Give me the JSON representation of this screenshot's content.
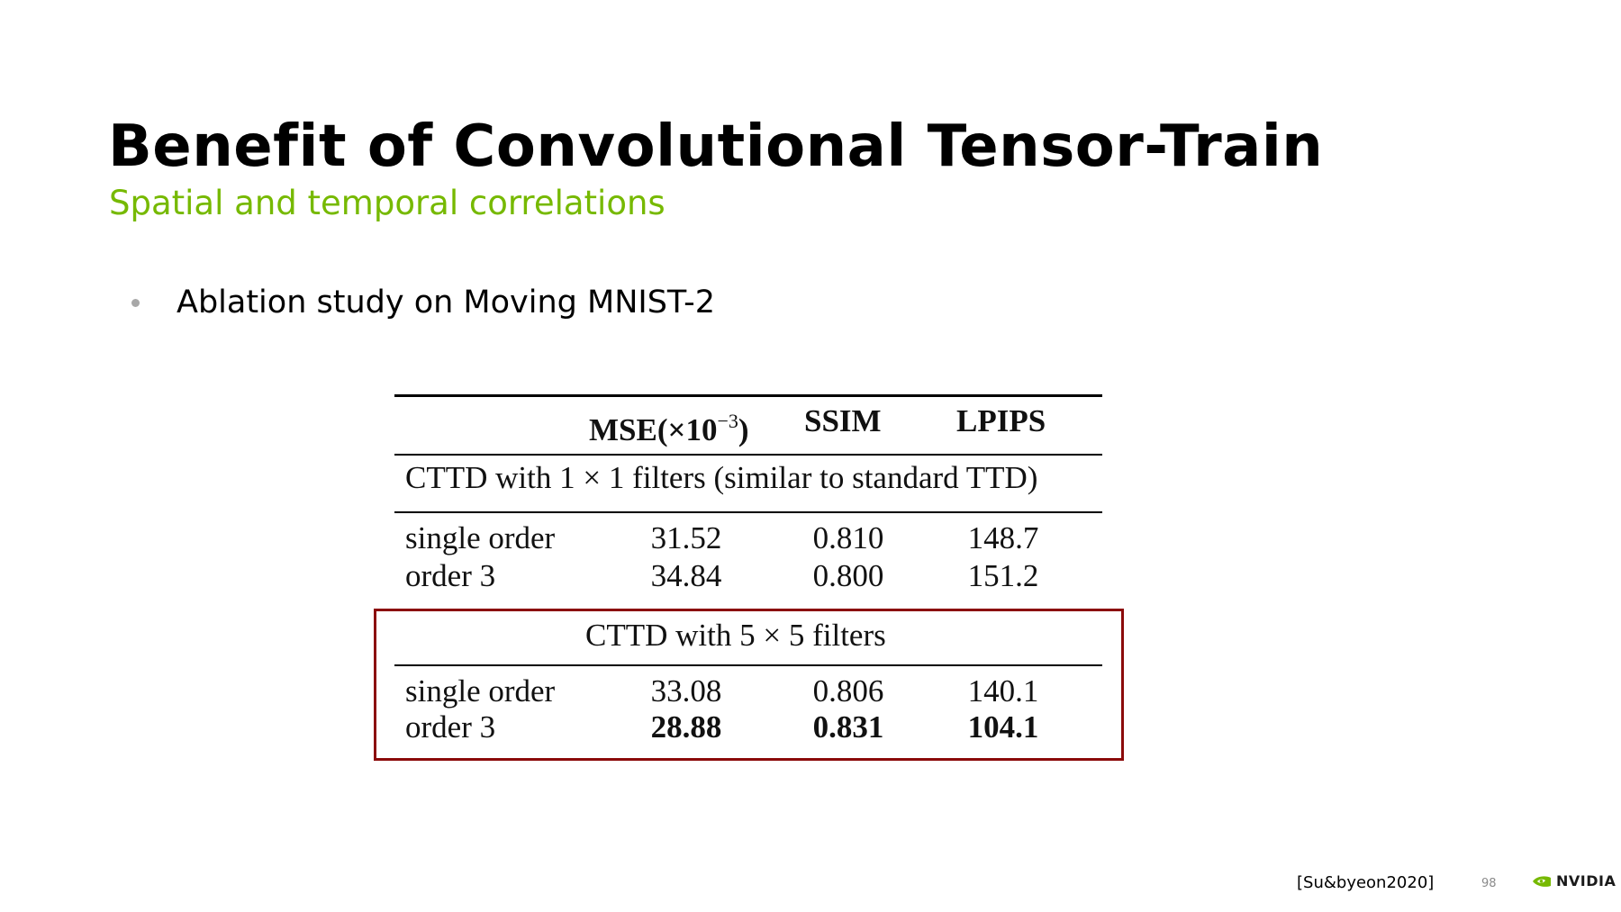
{
  "slide": {
    "title": "Benefit of Convolutional Tensor-Train",
    "subtitle": "Spatial and temporal correlations",
    "bullet": "Ablation study on Moving MNIST-2"
  },
  "table": {
    "header": {
      "mse_main": "MSE(×10",
      "mse_sup": "−3",
      "mse_close": ")",
      "ssim": "SSIM",
      "lpips": "LPIPS"
    },
    "section1": {
      "caption": "CTTD with 1 × 1 filters (similar to standard TTD)",
      "rows": [
        {
          "label": "single order",
          "mse": "31.52",
          "ssim": "0.810",
          "lpips": "148.7"
        },
        {
          "label": "order 3",
          "mse": "34.84",
          "ssim": "0.800",
          "lpips": "151.2"
        }
      ]
    },
    "section2": {
      "caption": "CTTD with 5 × 5 filters",
      "rows": [
        {
          "label": "single order",
          "mse": "33.08",
          "ssim": "0.806",
          "lpips": "140.1"
        },
        {
          "label": "order 3",
          "mse": "28.88",
          "ssim": "0.831",
          "lpips": "104.1"
        }
      ]
    },
    "highlight_color": "#8b0a0a"
  },
  "footer": {
    "citation": "[Su&byeon2020]",
    "page_number": "98",
    "brand": "NVIDIA"
  },
  "colors": {
    "accent": "#76b900",
    "bullet": "#a8a8a8"
  }
}
